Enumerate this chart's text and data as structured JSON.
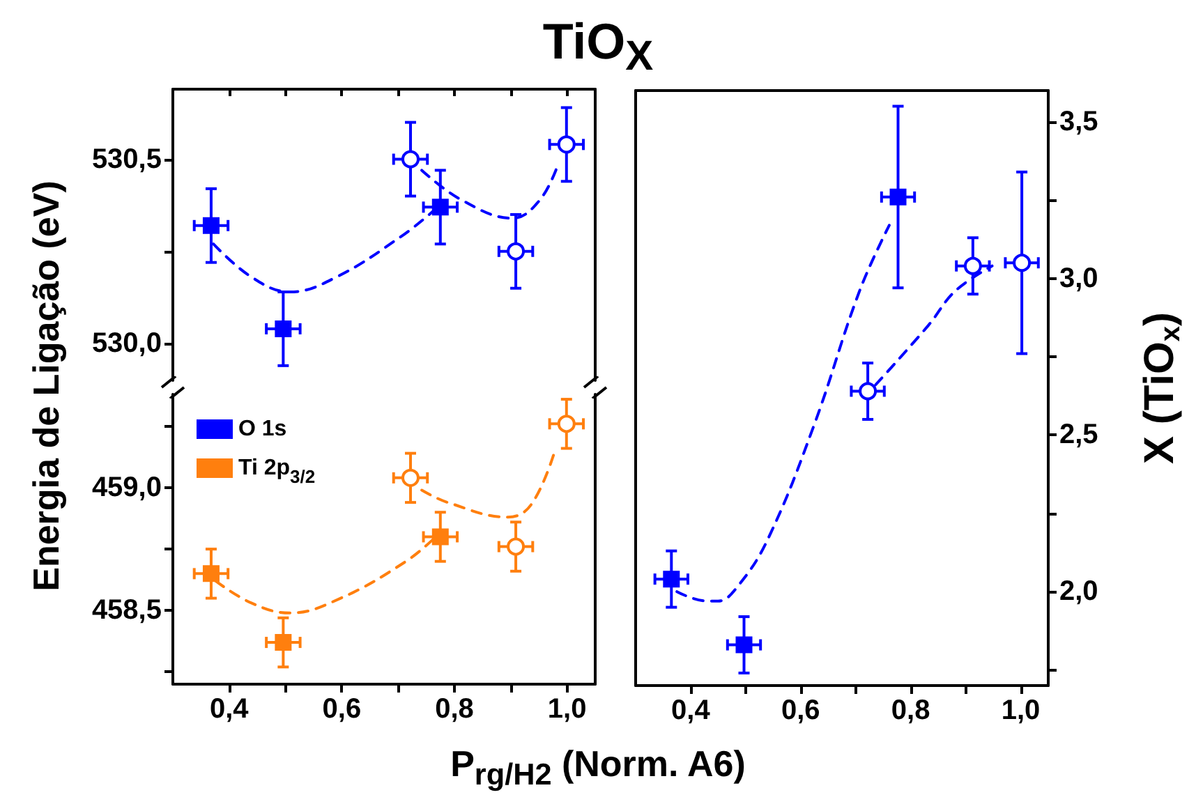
{
  "chart_data": [
    {
      "type": "scatter",
      "title": "TiO$_{X}$",
      "ylabel": "Energia de Ligação (eV)",
      "tick_labels": "y",
      "xlim": [
        0.3,
        1.05
      ],
      "xticks": [
        {
          "value": 0.4,
          "label": null
        },
        {
          "value": 0.5,
          "label": null
        },
        {
          "value": 0.6,
          "label": null
        },
        {
          "value": 0.7,
          "label": null
        },
        {
          "value": 0.8,
          "label": null
        },
        {
          "value": 0.9,
          "label": null
        },
        {
          "value": 1.0,
          "label": null
        }
      ],
      "ylim": [
        529.9,
        530.69
      ],
      "yticks": [
        {
          "value": 530.0,
          "label": "530,0"
        },
        {
          "value": 530.25,
          "label": null
        },
        {
          "value": 530.5,
          "label": "530,5"
        }
      ],
      "legend": "bottom left",
      "series": [
        {
          "name": "O 1s",
          "marker": "square",
          "color": "#0000ff",
          "x": [
            0.368,
            0.496,
            0.775
          ],
          "values": [
            530.32,
            530.04,
            530.37
          ],
          "errors": [
            0.1,
            0.1,
            0.1
          ],
          "xerrors": [
            0.03,
            0.03,
            0.03
          ]
        },
        {
          "marker": "circle",
          "color": "#0000ff",
          "x": [
            0.722,
            0.909,
            0.999
          ],
          "values": [
            530.5,
            530.25,
            530.54
          ],
          "errors": [
            0.1,
            0.1,
            0.1
          ],
          "xerrors": [
            0.03,
            0.03,
            0.03
          ]
        },
        {
          "type": "line",
          "line_style": "dashed",
          "marker": "none",
          "color": "#0000ff",
          "x": [
            0.372,
            0.44,
            0.508,
            0.59,
            0.705,
            0.763
          ],
          "values": [
            530.27,
            530.18,
            530.14,
            530.18,
            530.29,
            530.36
          ]
        },
        {
          "type": "line",
          "line_style": "dashed",
          "marker": "none",
          "color": "#0000ff",
          "x": [
            0.742,
            0.812,
            0.903,
            0.952,
            0.985
          ],
          "values": [
            530.47,
            530.39,
            530.34,
            530.39,
            530.49
          ]
        }
      ]
    },
    {
      "type": "scatter",
      "xlabel": "P$_{rg/H2}$ (Norm. A6)",
      "xlim": [
        0.3,
        1.05
      ],
      "xticks": [
        {
          "value": 0.4,
          "label": "0,4"
        },
        {
          "value": 0.5,
          "label": null
        },
        {
          "value": 0.6,
          "label": "0,6"
        },
        {
          "value": 0.7,
          "label": null
        },
        {
          "value": 0.8,
          "label": "0,8"
        },
        {
          "value": 0.9,
          "label": null
        },
        {
          "value": 1.0,
          "label": "1,0"
        }
      ],
      "ylim": [
        458.2,
        459.38
      ],
      "yticks": [
        {
          "value": 458.25,
          "label": null
        },
        {
          "value": 458.5,
          "label": "458,5"
        },
        {
          "value": 458.75,
          "label": null
        },
        {
          "value": 459.0,
          "label": "459,0"
        },
        {
          "value": 459.25,
          "label": null
        }
      ],
      "legend": "top left",
      "series": [
        {
          "name": "Ti 2p$_{3/2}$",
          "marker": "square",
          "color": "#ff7f0e",
          "x": [
            0.368,
            0.496,
            0.775
          ],
          "values": [
            458.65,
            458.37,
            458.8
          ],
          "errors": [
            0.1,
            0.1,
            0.1
          ],
          "xerrors": [
            0.03,
            0.03,
            0.03
          ]
        },
        {
          "marker": "circle",
          "color": "#ff7f0e",
          "x": [
            0.722,
            0.909,
            0.999
          ],
          "values": [
            459.04,
            458.76,
            459.26
          ],
          "errors": [
            0.1,
            0.1,
            0.1
          ],
          "xerrors": [
            0.03,
            0.03,
            0.03
          ]
        },
        {
          "type": "line",
          "line_style": "dashed",
          "marker": "none",
          "color": "#ff7f0e",
          "x": [
            0.376,
            0.44,
            0.508,
            0.598,
            0.714,
            0.767
          ],
          "values": [
            458.62,
            458.53,
            458.49,
            458.55,
            458.7,
            458.8
          ]
        },
        {
          "type": "line",
          "line_style": "dashed",
          "marker": "none",
          "color": "#ff7f0e",
          "x": [
            0.742,
            0.788,
            0.895,
            0.936,
            0.977
          ],
          "values": [
            458.99,
            458.94,
            458.88,
            458.93,
            459.14
          ]
        }
      ]
    },
    {
      "type": "scatter",
      "ylabel": "X (TiO$_{x}$)",
      "xlim": [
        0.3,
        1.05
      ],
      "xticks": [
        {
          "value": 0.4,
          "label": "0,4"
        },
        {
          "value": 0.5,
          "label": null
        },
        {
          "value": 0.6,
          "label": "0,6"
        },
        {
          "value": 0.7,
          "label": null
        },
        {
          "value": 0.8,
          "label": "0,8"
        },
        {
          "value": 0.9,
          "label": null
        },
        {
          "value": 1.0,
          "label": "1,0"
        }
      ],
      "ylim": [
        1.7,
        3.6
      ],
      "yticks": [
        {
          "value": 1.75,
          "label": null
        },
        {
          "value": 2.0,
          "label": "2,0"
        },
        {
          "value": 2.25,
          "label": null
        },
        {
          "value": 2.5,
          "label": "2,5"
        },
        {
          "value": 2.75,
          "label": null
        },
        {
          "value": 3.0,
          "label": "3,0"
        },
        {
          "value": 3.25,
          "label": null
        },
        {
          "value": 3.5,
          "label": "3,5"
        }
      ],
      "series": [
        {
          "marker": "square",
          "color": "#0000ff",
          "x": [
            0.365,
            0.497,
            0.777
          ],
          "values": [
            2.04,
            1.83,
            3.26
          ],
          "errors": [
            0.09,
            0.09,
            0.29
          ],
          "xerrors": [
            0.03,
            0.03,
            0.03
          ]
        },
        {
          "marker": "circle",
          "color": "#0000ff",
          "x": [
            0.722,
            0.913,
            1.002
          ],
          "values": [
            2.64,
            3.04,
            3.05
          ],
          "errors": [
            0.09,
            0.09,
            0.29
          ],
          "xerrors": [
            0.03,
            0.03,
            0.03
          ]
        },
        {
          "type": "line",
          "line_style": "dashed",
          "marker": "none",
          "color": "#0000ff",
          "x": [
            0.375,
            0.429,
            0.45,
            0.487,
            0.541,
            0.624,
            0.707,
            0.761
          ],
          "values": [
            2.0,
            1.97,
            1.97,
            2.02,
            2.17,
            2.53,
            2.96,
            3.17
          ]
        },
        {
          "type": "line",
          "line_style": "dashed",
          "marker": "none",
          "color": "#0000ff",
          "x": [
            0.736,
            0.832,
            0.881,
            0.948
          ],
          "values": [
            2.66,
            2.85,
            2.96,
            3.04
          ]
        }
      ]
    }
  ]
}
